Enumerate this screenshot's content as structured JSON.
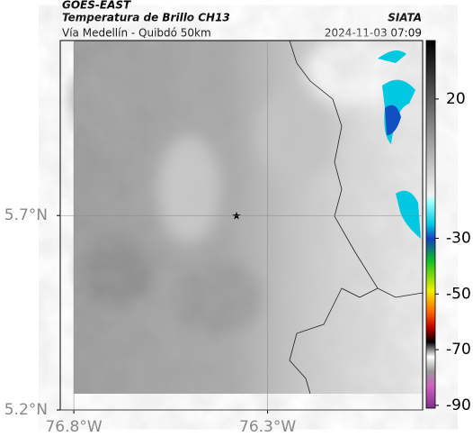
{
  "header": {
    "source": "GOES-EAST",
    "title": "Temperatura de Brillo CH13",
    "brand": "SIATA",
    "subtitle": "Vía Medellín - Quibdó 50km",
    "timestamp": "2024-11-03 07:09"
  },
  "map": {
    "xlim": [
      -76.835,
      -75.9
    ],
    "ylim": [
      5.2,
      6.15
    ],
    "xticks": [
      {
        "value": -76.8,
        "label": "76.8°W"
      },
      {
        "value": -76.3,
        "label": "76.3°W"
      }
    ],
    "yticks": [
      {
        "value": 5.2,
        "label": "5.2°N"
      },
      {
        "value": 5.7,
        "label": "5.7°N"
      }
    ],
    "grid": true
  },
  "colorbar": {
    "lim": [
      -91,
      41
    ],
    "ticks": [
      20,
      -30,
      -50,
      -70,
      -90
    ]
  }
}
